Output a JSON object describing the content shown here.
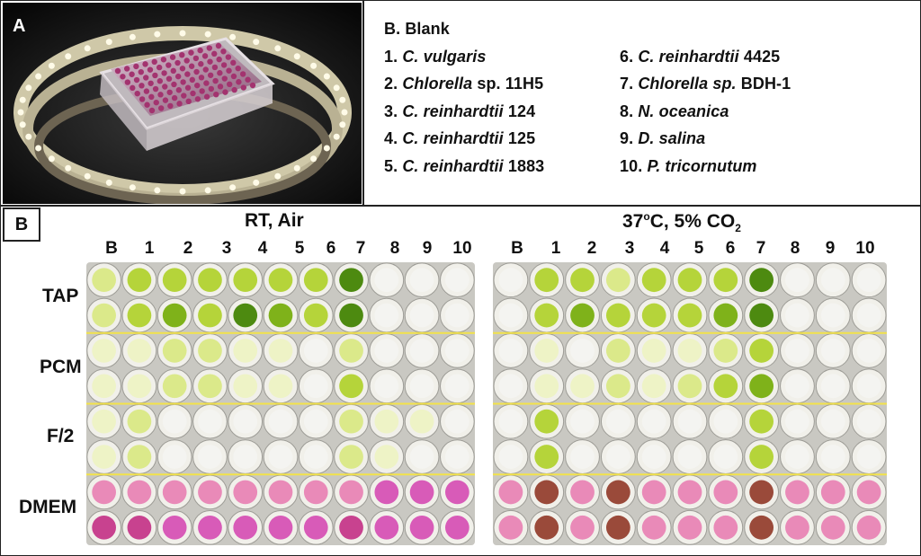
{
  "panel_a": {
    "letter": "A",
    "photo_description_icon": "microplate-on-led-ring-photo"
  },
  "legend": {
    "items": [
      {
        "prefix": "B. ",
        "italic": "",
        "suffix": "Blank"
      },
      {
        "prefix": "1. ",
        "italic": "C. vulgaris",
        "suffix": ""
      },
      {
        "prefix": "2. ",
        "italic": "Chlorella",
        "suffix": " sp. 11H5"
      },
      {
        "prefix": "3. ",
        "italic": "C. reinhardtii",
        "suffix": " 124"
      },
      {
        "prefix": "4. ",
        "italic": "C. reinhardtii",
        "suffix": " 125"
      },
      {
        "prefix": "5. ",
        "italic": "C. reinhardtii",
        "suffix": " 1883"
      },
      {
        "prefix": "6. ",
        "italic": "C. reinhardtii",
        "suffix": " 4425"
      },
      {
        "prefix": "7. ",
        "italic": "Chlorella sp.",
        "suffix": " BDH-1"
      },
      {
        "prefix": "8. ",
        "italic": "N. oceanica",
        "suffix": ""
      },
      {
        "prefix": "9. ",
        "italic": "D. salina",
        "suffix": ""
      },
      {
        "prefix": "10. ",
        "italic": "P. tricornutum",
        "suffix": ""
      }
    ]
  },
  "panel_b": {
    "letter": "B",
    "conditions": [
      {
        "title": "RT, Air"
      },
      {
        "title_main": "37",
        "title_sup": "o",
        "title_rest": "C, 5% CO",
        "title_sub": "2"
      }
    ],
    "columns": [
      "B",
      "1",
      "2",
      "3",
      "4",
      "5",
      "6",
      "7",
      "8",
      "9",
      "10"
    ],
    "media": [
      "TAP",
      "PCM",
      "F/2",
      "DMEM"
    ]
  }
}
